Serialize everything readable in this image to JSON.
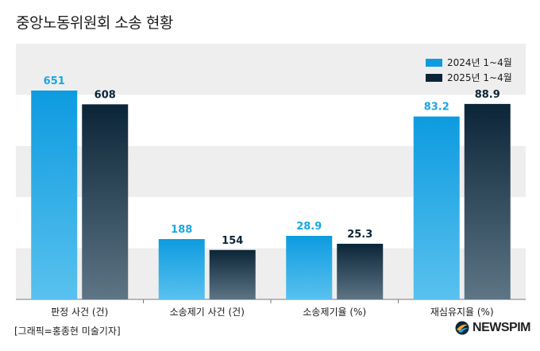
{
  "title": "중앙노동위원회 소송 현황",
  "credit": "[그래픽=홍종현 미술기자]",
  "logo_text": "NEWSPIM",
  "colors": {
    "series_2024_top": "#0d9be0",
    "series_2024_bottom": "#59c1ee",
    "series_2025_top": "#0b2538",
    "series_2025_bottom": "#5d7585",
    "label_2024": "#1ba7e3",
    "label_2025": "#0b2538",
    "band": "#eeeeee"
  },
  "chart_data": {
    "type": "bar",
    "categories": [
      "판정 사건 (건)",
      "소송제기 사건 (건)",
      "소송제기율 (%)",
      "재심유지율 (%)"
    ],
    "series": [
      {
        "name": "2024년 1~4월",
        "values": [
          651,
          188,
          28.9,
          83.2
        ],
        "labels": [
          "651",
          "188",
          "28.9",
          "83.2"
        ]
      },
      {
        "name": "2025년 1~4월",
        "values": [
          608,
          154,
          25.3,
          88.9
        ],
        "labels": [
          "608",
          "154",
          "25.3",
          "88.9"
        ]
      }
    ],
    "panel_max": [
      651,
      651,
      95,
      95
    ],
    "legend_position": "top-right",
    "grid": "alternating horizontal bands"
  }
}
